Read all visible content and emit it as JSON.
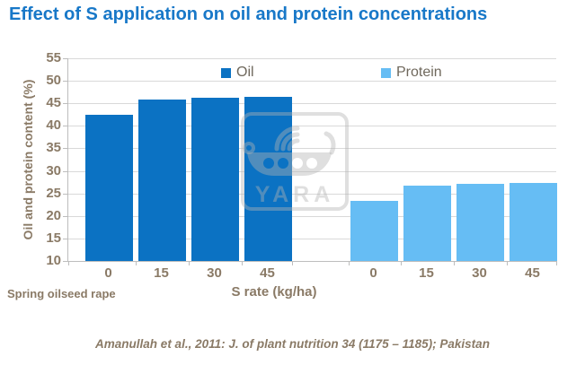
{
  "title": "Effect of S application on oil and protein concentrations",
  "crop_label": "Spring oilseed rape",
  "citation": "Amanullah et al., 2011: J. of plant nutrition 34 (1175 – 1185); Pakistan",
  "watermark_text": "YARA",
  "colors": {
    "title": "#1878c8",
    "oil": "#0b72c3",
    "protein": "#66bdf4",
    "axis_text": "#8a7a66",
    "legend_text": "#6f685c",
    "grid": "#d9d9d9",
    "axis_line": "#bdbdbd",
    "watermark": "rgba(178,178,178,0.42)"
  },
  "chart_data": {
    "type": "bar",
    "title": "Effect of S application on oil and protein concentrations",
    "xlabel": "S rate (kg/ha)",
    "ylabel": "Oil and protein content (%)",
    "ylim": [
      10,
      55
    ],
    "ytick_step": 5,
    "grid": true,
    "legend_position": "top-inside",
    "categories": [
      "0",
      "15",
      "30",
      "45"
    ],
    "series": [
      {
        "name": "Oil",
        "values": [
          42.5,
          45.9,
          46.2,
          46.5
        ],
        "color": "#0b72c3"
      },
      {
        "name": "Protein",
        "values": [
          23.3,
          26.8,
          27.1,
          27.4
        ],
        "color": "#66bdf4"
      }
    ]
  }
}
